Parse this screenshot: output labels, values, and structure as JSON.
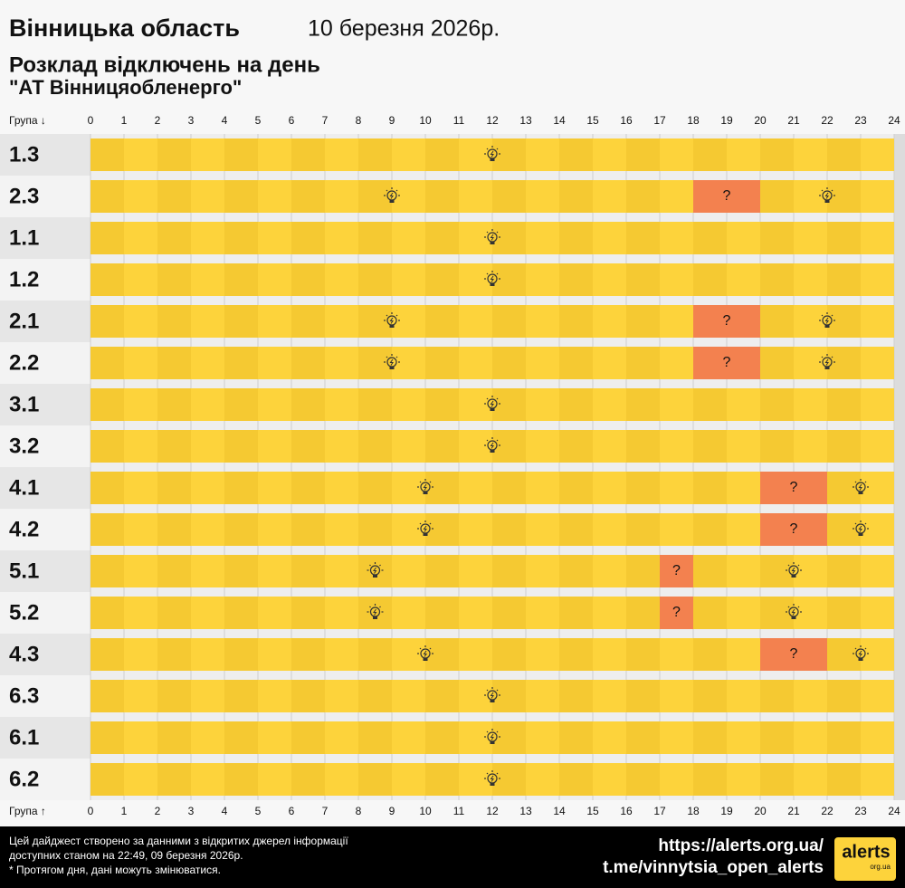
{
  "chart_data": {
    "type": "timeline",
    "title": "Вінницька область",
    "date": "10 березня 2026р.",
    "subtitle": "Розклад відключень на день",
    "subtitle2": "\"АТ Вінницяобленерго\"",
    "axis_label_top": "Група ↓",
    "axis_label_bottom": "Група ↑",
    "xlim": [
      0,
      24
    ],
    "xticks": [
      0,
      1,
      2,
      3,
      4,
      5,
      6,
      7,
      8,
      9,
      10,
      11,
      12,
      13,
      14,
      15,
      16,
      17,
      18,
      19,
      20,
      21,
      22,
      23,
      24
    ],
    "statuses": {
      "on": {
        "color": "#fdd33b"
      },
      "maybe": {
        "color": "#f3814f",
        "label": "?"
      }
    },
    "rows": [
      {
        "group": "1.3",
        "segments": [
          {
            "start": 0,
            "end": 24,
            "status": "on"
          }
        ]
      },
      {
        "group": "2.3",
        "segments": [
          {
            "start": 0,
            "end": 18,
            "status": "on"
          },
          {
            "start": 18,
            "end": 20,
            "status": "maybe"
          },
          {
            "start": 20,
            "end": 24,
            "status": "on"
          }
        ]
      },
      {
        "group": "1.1",
        "segments": [
          {
            "start": 0,
            "end": 24,
            "status": "on"
          }
        ]
      },
      {
        "group": "1.2",
        "segments": [
          {
            "start": 0,
            "end": 24,
            "status": "on"
          }
        ]
      },
      {
        "group": "2.1",
        "segments": [
          {
            "start": 0,
            "end": 18,
            "status": "on"
          },
          {
            "start": 18,
            "end": 20,
            "status": "maybe"
          },
          {
            "start": 20,
            "end": 24,
            "status": "on"
          }
        ]
      },
      {
        "group": "2.2",
        "segments": [
          {
            "start": 0,
            "end": 18,
            "status": "on"
          },
          {
            "start": 18,
            "end": 20,
            "status": "maybe"
          },
          {
            "start": 20,
            "end": 24,
            "status": "on"
          }
        ]
      },
      {
        "group": "3.1",
        "segments": [
          {
            "start": 0,
            "end": 24,
            "status": "on"
          }
        ]
      },
      {
        "group": "3.2",
        "segments": [
          {
            "start": 0,
            "end": 24,
            "status": "on"
          }
        ]
      },
      {
        "group": "4.1",
        "segments": [
          {
            "start": 0,
            "end": 20,
            "status": "on"
          },
          {
            "start": 20,
            "end": 22,
            "status": "maybe"
          },
          {
            "start": 22,
            "end": 24,
            "status": "on"
          }
        ]
      },
      {
        "group": "4.2",
        "segments": [
          {
            "start": 0,
            "end": 20,
            "status": "on"
          },
          {
            "start": 20,
            "end": 22,
            "status": "maybe"
          },
          {
            "start": 22,
            "end": 24,
            "status": "on"
          }
        ]
      },
      {
        "group": "5.1",
        "segments": [
          {
            "start": 0,
            "end": 17,
            "status": "on"
          },
          {
            "start": 17,
            "end": 18,
            "status": "maybe"
          },
          {
            "start": 18,
            "end": 24,
            "status": "on"
          }
        ]
      },
      {
        "group": "5.2",
        "segments": [
          {
            "start": 0,
            "end": 17,
            "status": "on"
          },
          {
            "start": 17,
            "end": 18,
            "status": "maybe"
          },
          {
            "start": 18,
            "end": 24,
            "status": "on"
          }
        ]
      },
      {
        "group": "4.3",
        "segments": [
          {
            "start": 0,
            "end": 20,
            "status": "on"
          },
          {
            "start": 20,
            "end": 22,
            "status": "maybe"
          },
          {
            "start": 22,
            "end": 24,
            "status": "on"
          }
        ]
      },
      {
        "group": "6.3",
        "segments": [
          {
            "start": 0,
            "end": 24,
            "status": "on"
          }
        ]
      },
      {
        "group": "6.1",
        "segments": [
          {
            "start": 0,
            "end": 24,
            "status": "on"
          }
        ]
      },
      {
        "group": "6.2",
        "segments": [
          {
            "start": 0,
            "end": 24,
            "status": "on"
          }
        ]
      }
    ],
    "footer_lines": [
      "Цей дайджест створено за данними з відкритих джерел інформації",
      "доступних станом на 22:49, 09 березня 2026р.",
      "* Протягом дня, дані можуть змінюватися."
    ],
    "links": [
      "https://alerts.org.ua/",
      "t.me/vinnytsia_open_alerts"
    ],
    "logo": "alerts",
    "logo_sub": "org.ua"
  }
}
